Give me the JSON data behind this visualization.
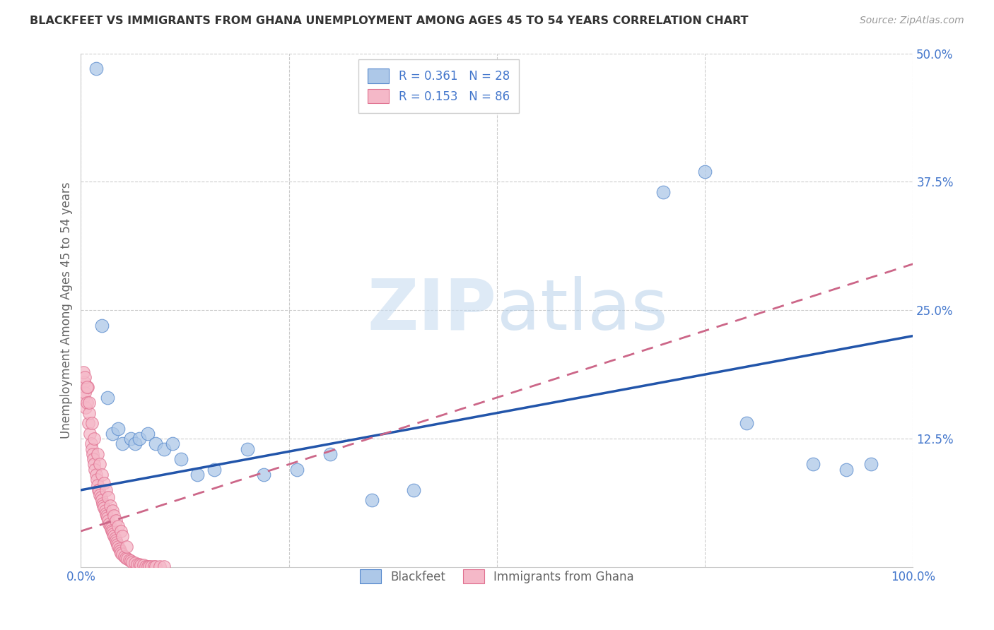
{
  "title": "BLACKFEET VS IMMIGRANTS FROM GHANA UNEMPLOYMENT AMONG AGES 45 TO 54 YEARS CORRELATION CHART",
  "source": "Source: ZipAtlas.com",
  "ylabel": "Unemployment Among Ages 45 to 54 years",
  "xlim": [
    0,
    1.0
  ],
  "ylim": [
    0,
    0.5
  ],
  "yticks": [
    0.0,
    0.125,
    0.25,
    0.375,
    0.5
  ],
  "yticklabels": [
    "",
    "12.5%",
    "25.0%",
    "37.5%",
    "50.0%"
  ],
  "blue_color": "#adc8e8",
  "pink_color": "#f5b8c8",
  "blue_edge_color": "#5588cc",
  "pink_edge_color": "#e07090",
  "blue_line_color": "#2255aa",
  "pink_line_color": "#cc6688",
  "tick_color": "#4477cc",
  "watermark_zip": "ZIP",
  "watermark_atlas": "atlas",
  "blackfeet_x": [
    0.018,
    0.025,
    0.032,
    0.038,
    0.045,
    0.05,
    0.06,
    0.065,
    0.07,
    0.08,
    0.09,
    0.1,
    0.11,
    0.12,
    0.14,
    0.16,
    0.2,
    0.22,
    0.26,
    0.3,
    0.35,
    0.4,
    0.7,
    0.75,
    0.8,
    0.88,
    0.92,
    0.95
  ],
  "blackfeet_y": [
    0.485,
    0.235,
    0.165,
    0.13,
    0.135,
    0.12,
    0.125,
    0.12,
    0.125,
    0.13,
    0.12,
    0.115,
    0.12,
    0.105,
    0.09,
    0.095,
    0.115,
    0.09,
    0.095,
    0.11,
    0.065,
    0.075,
    0.365,
    0.385,
    0.14,
    0.1,
    0.095,
    0.1
  ],
  "ghana_x": [
    0.003,
    0.004,
    0.005,
    0.006,
    0.007,
    0.008,
    0.009,
    0.01,
    0.011,
    0.012,
    0.013,
    0.014,
    0.015,
    0.016,
    0.017,
    0.018,
    0.019,
    0.02,
    0.021,
    0.022,
    0.023,
    0.024,
    0.025,
    0.026,
    0.027,
    0.028,
    0.029,
    0.03,
    0.031,
    0.032,
    0.033,
    0.034,
    0.035,
    0.036,
    0.037,
    0.038,
    0.039,
    0.04,
    0.041,
    0.042,
    0.043,
    0.044,
    0.045,
    0.046,
    0.047,
    0.048,
    0.05,
    0.052,
    0.054,
    0.056,
    0.058,
    0.06,
    0.062,
    0.065,
    0.068,
    0.07,
    0.072,
    0.075,
    0.078,
    0.08,
    0.082,
    0.085,
    0.088,
    0.09,
    0.095,
    0.1,
    0.003,
    0.005,
    0.007,
    0.01,
    0.013,
    0.016,
    0.02,
    0.023,
    0.025,
    0.028,
    0.03,
    0.033,
    0.035,
    0.038,
    0.04,
    0.042,
    0.045,
    0.048,
    0.05,
    0.055
  ],
  "ghana_y": [
    0.165,
    0.18,
    0.17,
    0.155,
    0.16,
    0.175,
    0.14,
    0.15,
    0.13,
    0.12,
    0.115,
    0.11,
    0.105,
    0.1,
    0.095,
    0.09,
    0.085,
    0.08,
    0.075,
    0.075,
    0.07,
    0.068,
    0.065,
    0.062,
    0.06,
    0.058,
    0.055,
    0.052,
    0.05,
    0.048,
    0.045,
    0.042,
    0.04,
    0.038,
    0.036,
    0.034,
    0.032,
    0.03,
    0.028,
    0.026,
    0.024,
    0.022,
    0.02,
    0.018,
    0.016,
    0.014,
    0.012,
    0.01,
    0.009,
    0.008,
    0.007,
    0.006,
    0.005,
    0.004,
    0.003,
    0.003,
    0.002,
    0.002,
    0.001,
    0.001,
    0.001,
    0.001,
    0.001,
    0.001,
    0.001,
    0.001,
    0.19,
    0.185,
    0.175,
    0.16,
    0.14,
    0.125,
    0.11,
    0.1,
    0.09,
    0.082,
    0.075,
    0.068,
    0.06,
    0.055,
    0.05,
    0.045,
    0.04,
    0.035,
    0.03,
    0.02
  ],
  "blue_line_x0": 0.0,
  "blue_line_y0": 0.075,
  "blue_line_x1": 1.0,
  "blue_line_y1": 0.225,
  "pink_line_x0": 0.0,
  "pink_line_y0": 0.035,
  "pink_line_x1": 1.0,
  "pink_line_y1": 0.295
}
